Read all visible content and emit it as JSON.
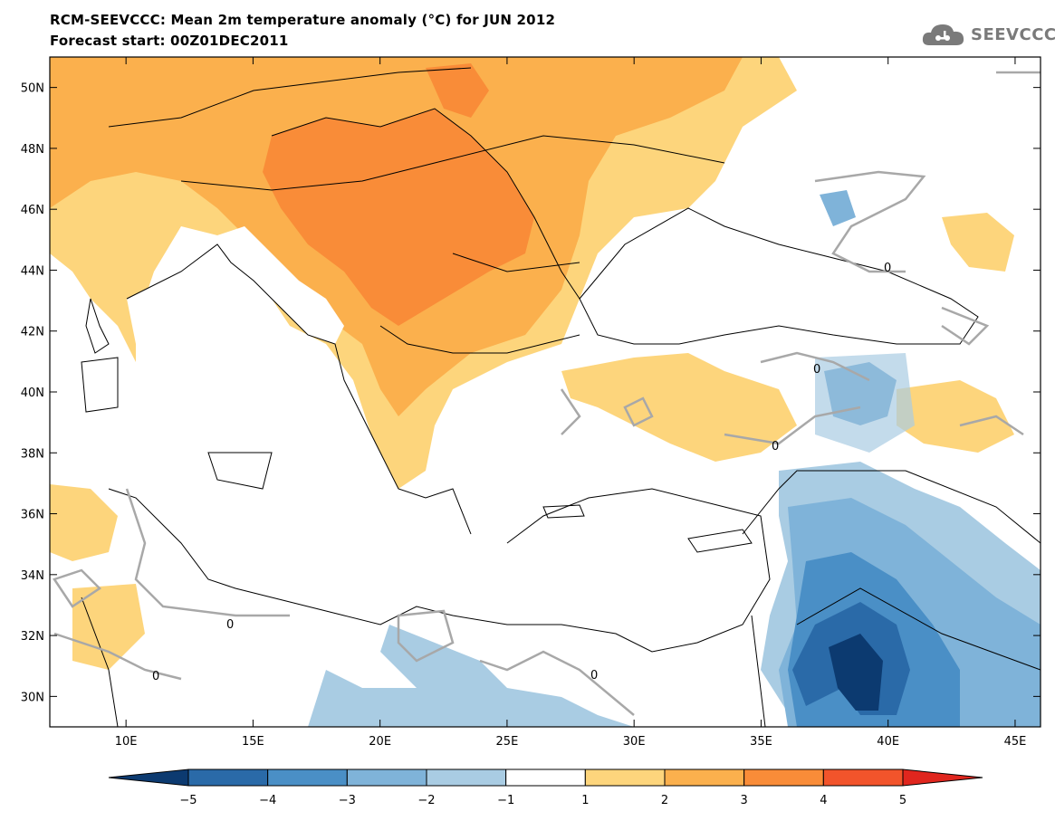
{
  "header": {
    "title": "RCM-SEEVCCC: Mean 2m temperature anomaly (°C) for JUN 2012",
    "subtitle": "Forecast start: 00Z01DEC2011"
  },
  "logo": {
    "text": "SEEVCCC",
    "icon": "cloud-icon",
    "color": "#7a7a7a"
  },
  "map": {
    "lon_range": [
      7,
      46
    ],
    "lat_range": [
      29,
      51
    ],
    "lat_labels": [
      "30N",
      "32N",
      "34N",
      "36N",
      "38N",
      "40N",
      "42N",
      "44N",
      "46N",
      "48N",
      "50N"
    ],
    "lon_labels": [
      "10E",
      "15E",
      "20E",
      "25E",
      "30E",
      "35E",
      "40E",
      "45E"
    ],
    "contour_label": "0"
  },
  "colorbar": {
    "labels": [
      "−5",
      "−4",
      "−3",
      "−2",
      "−1",
      "1",
      "2",
      "3",
      "4",
      "5"
    ],
    "colors": [
      "#0c3a70",
      "#2a6aa8",
      "#4a8fc6",
      "#7fb3d9",
      "#a9cce3",
      "#ffffff",
      "#fdd57c",
      "#fbb04d",
      "#f98c38",
      "#f2542b",
      "#e0261e"
    ]
  }
}
